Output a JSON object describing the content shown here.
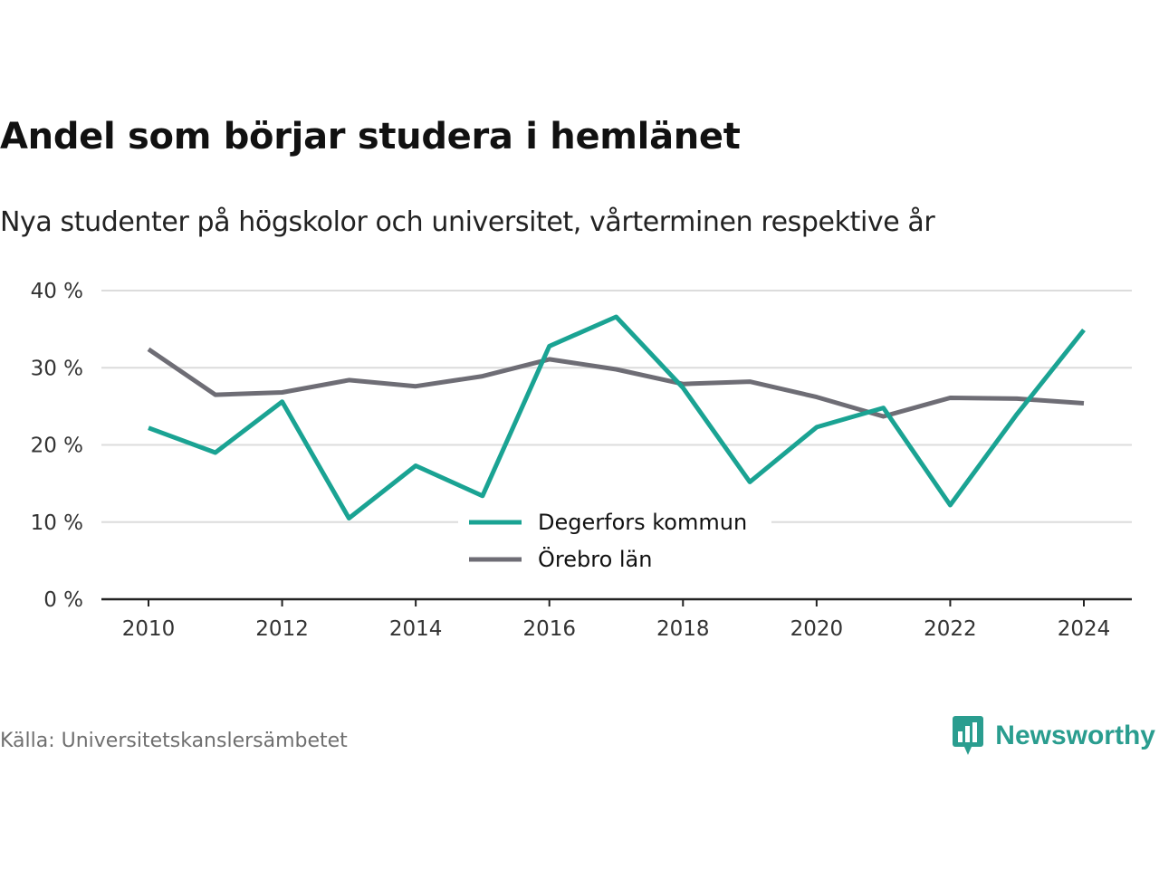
{
  "title": "Andel som börjar studera i hemlänet",
  "subtitle": "Nya studenter på högskolor och universitet, vårterminen respektive år",
  "source": "Källa: Universitetskanslersämbetet",
  "brand": {
    "name": "Newsworthy",
    "icon": "bar-chart-speech-bubble-icon",
    "color": "#2a9d8f"
  },
  "colors": {
    "degerfors": "#1aa393",
    "orebro": "#6e6d75",
    "grid": "#dcdcdc",
    "axis": "#222222"
  },
  "chart_data": {
    "type": "line",
    "x": [
      2010,
      2011,
      2012,
      2013,
      2014,
      2015,
      2016,
      2017,
      2018,
      2019,
      2020,
      2021,
      2022,
      2023,
      2024
    ],
    "series": [
      {
        "name": "Degerfors kommun",
        "color": "#1aa393",
        "values": [
          22.2,
          19.0,
          25.6,
          10.5,
          17.3,
          13.4,
          32.8,
          36.6,
          27.4,
          15.2,
          22.3,
          24.8,
          12.2,
          24.0,
          34.9
        ]
      },
      {
        "name": "Örebro län",
        "color": "#6e6d75",
        "values": [
          32.4,
          26.5,
          26.8,
          28.4,
          27.6,
          28.9,
          31.1,
          29.8,
          27.9,
          28.2,
          26.2,
          23.7,
          26.1,
          26.0,
          25.4
        ]
      }
    ],
    "xticks": [
      "2010",
      "2012",
      "2014",
      "2016",
      "2018",
      "2020",
      "2022",
      "2024"
    ],
    "yticks": [
      "0 %",
      "10 %",
      "20 %",
      "30 %",
      "40 %"
    ],
    "ylim": [
      0,
      40
    ],
    "xlim": [
      2010,
      2024
    ],
    "grid": true,
    "legend_position": "bottom-center"
  }
}
